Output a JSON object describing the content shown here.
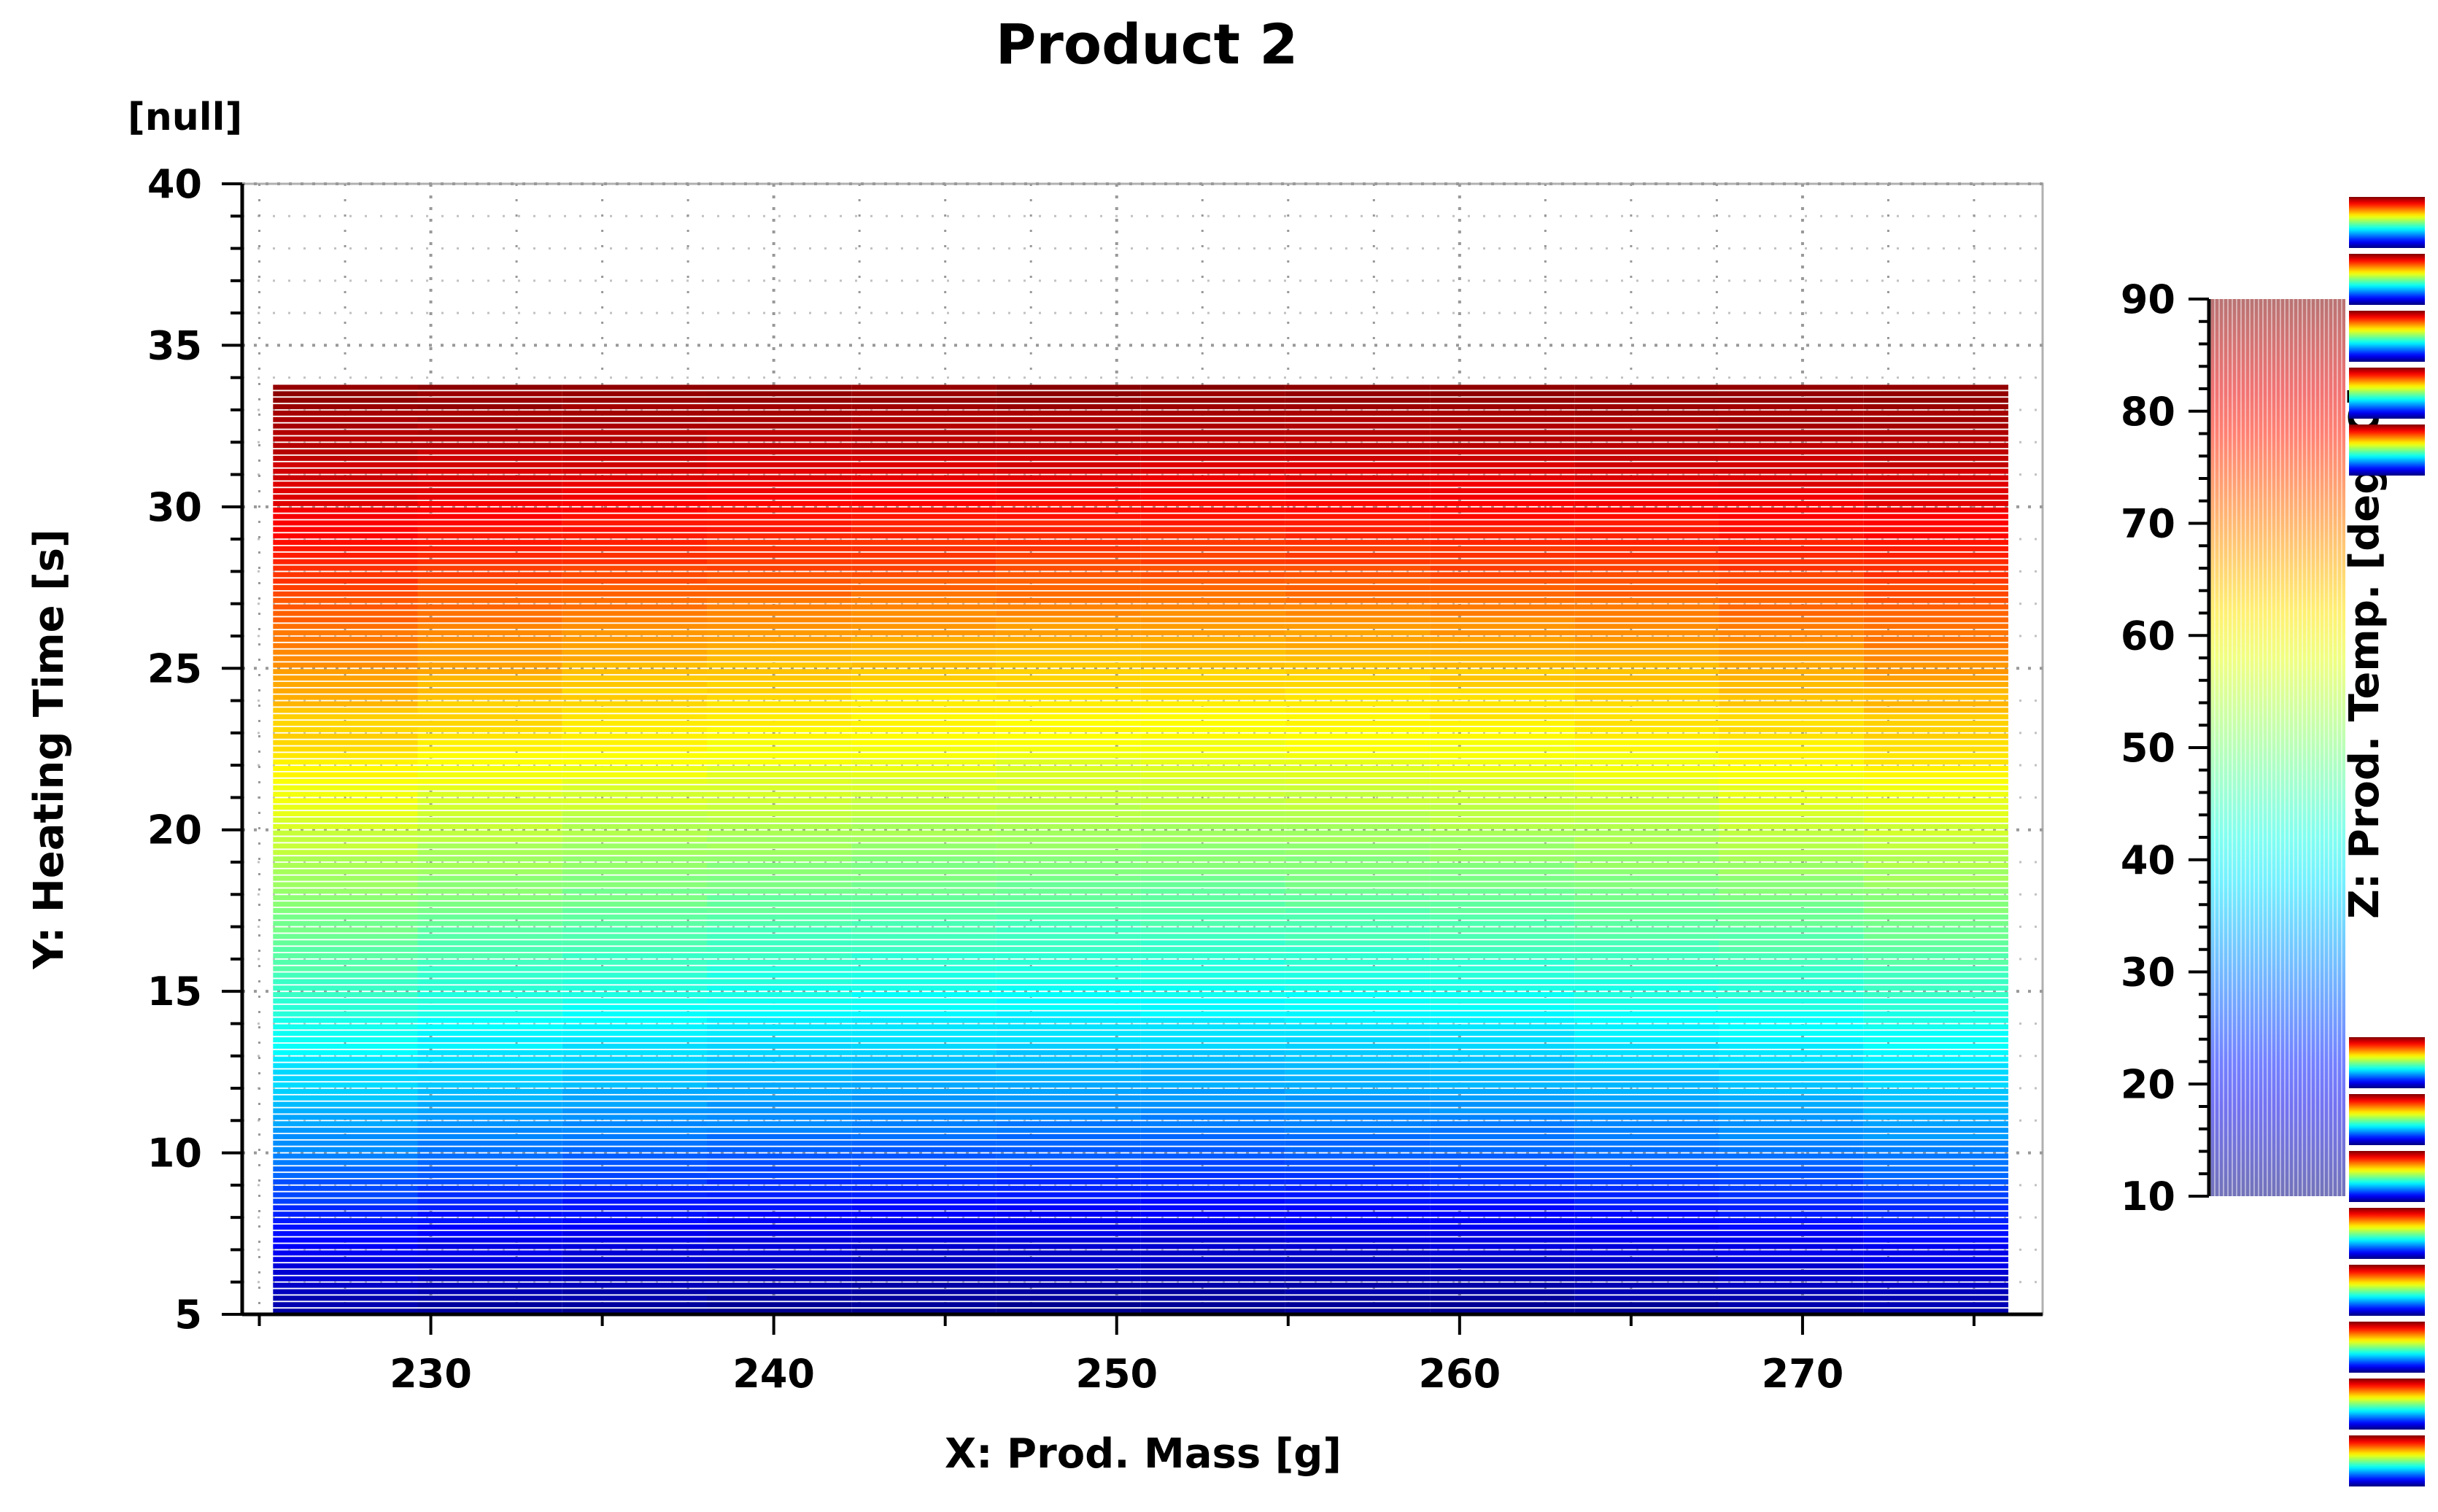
{
  "chart_data": {
    "type": "heatmap",
    "title": "Product 2",
    "y_unit_label": "[null]",
    "xlabel": "X: Prod. Mass [g]",
    "ylabel": "Y: Heating Time [s]",
    "zlabel": "Z: Prod. Temp. [deg. C]",
    "xlim": [
      224.5,
      277
    ],
    "ylim": [
      5,
      40
    ],
    "zlim": [
      10,
      90
    ],
    "x_ticks": [
      230,
      240,
      250,
      260,
      270
    ],
    "y_ticks": [
      5,
      10,
      15,
      20,
      25,
      30,
      35,
      40
    ],
    "z_ticks": [
      10,
      20,
      30,
      40,
      50,
      60,
      70,
      80,
      90
    ],
    "data_x_range": [
      225.4,
      276.0
    ],
    "data_y_range": [
      5.1,
      33.7
    ],
    "grid": true,
    "colormap": "jet",
    "temperature_profile": {
      "heating_time": [
        5,
        8,
        10,
        12,
        15,
        18,
        20,
        22,
        24,
        25,
        27,
        28,
        30,
        32,
        33.7
      ],
      "center_temp": [
        11,
        19,
        27,
        33,
        41,
        48,
        53,
        58,
        62,
        64,
        70,
        74,
        79,
        85,
        89
      ],
      "edge_temp": [
        13,
        23,
        31,
        37,
        45,
        52,
        57,
        62,
        66,
        69,
        74,
        77,
        82,
        86,
        89
      ]
    },
    "colors": {
      "jet_low": "#0000ff",
      "jet_mid": "#00ffff",
      "jet_high": "#ff0000",
      "frame": "#000000",
      "grid": "#999999"
    }
  }
}
